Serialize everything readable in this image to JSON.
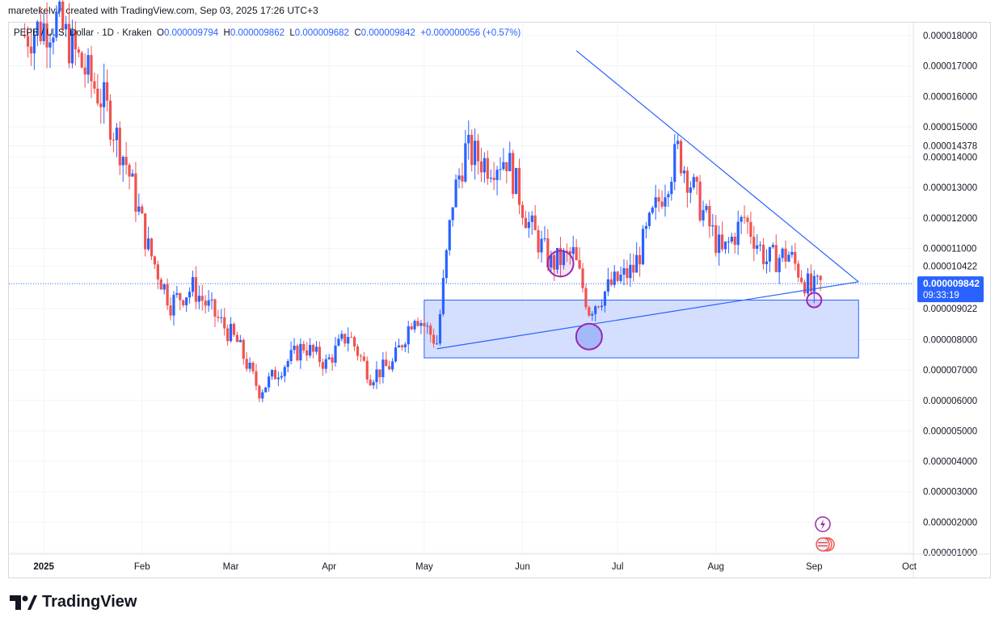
{
  "header": {
    "attribution": "maretekelvin created with TradingView.com, Sep 03, 2025 17:26 UTC+3"
  },
  "legend": {
    "symbol": "PEPE / U. S. Dollar · 1D · Kraken",
    "o_label": "O",
    "o": "0.000009794",
    "h_label": "H",
    "h": "0.000009862",
    "l_label": "L",
    "l": "0.000009682",
    "c_label": "C",
    "c": "0.000009842",
    "change": "+0.000000056 (+0.57%)"
  },
  "brand": {
    "name": "TradingView"
  },
  "colors": {
    "up": "#26a69a",
    "up_body": "#2962ff",
    "down": "#ef5350",
    "line": "#2962ff",
    "zone": "#c9d6ff",
    "circle": "#9c27b0",
    "price_label": "#2962ff"
  },
  "chart_data": {
    "type": "candlestick",
    "x_axis": [
      "2025",
      "Feb",
      "Mar",
      "Apr",
      "May",
      "Jun",
      "Jul",
      "Aug",
      "Sep",
      "Oct"
    ],
    "y_ticks": [
      "0.000018000",
      "0.000017000",
      "0.000016000",
      "0.000015000",
      "0.000014378",
      "0.000014000",
      "0.000013000",
      "0.000012000",
      "0.000011000",
      "0.000010422",
      "0.000009022",
      "0.000008000",
      "0.000007000",
      "0.000006000",
      "0.000005000",
      "0.000004000",
      "0.000003000",
      "0.000002000",
      "0.000001000"
    ],
    "ylim": [
      1e-06,
      1.85e-05
    ],
    "last_price": {
      "value": "0.000009842",
      "countdown": "09:33:19"
    },
    "series_close_points": [
      [
        "2024-12-26",
        1.8e-05
      ],
      [
        "2025-01-05",
        1.85e-05
      ],
      [
        "2025-01-12",
        1.72e-05
      ],
      [
        "2025-01-20",
        1.58e-05
      ],
      [
        "2025-01-27",
        1.38e-05
      ],
      [
        "2025-02-03",
        1.1e-05
      ],
      [
        "2025-02-10",
        9.2e-06
      ],
      [
        "2025-02-17",
        9.7e-06
      ],
      [
        "2025-02-24",
        8.8e-06
      ],
      [
        "2025-03-03",
        7.9e-06
      ],
      [
        "2025-03-10",
        6.3e-06
      ],
      [
        "2025-03-17",
        7.1e-06
      ],
      [
        "2025-03-24",
        7.8e-06
      ],
      [
        "2025-03-31",
        7.2e-06
      ],
      [
        "2025-04-07",
        8.2e-06
      ],
      [
        "2025-04-14",
        6.8e-06
      ],
      [
        "2025-04-21",
        7.2e-06
      ],
      [
        "2025-04-28",
        8.9e-06
      ],
      [
        "2025-05-05",
        7.9e-06
      ],
      [
        "2025-05-10",
        1.26e-05
      ],
      [
        "2025-05-14",
        1.42e-05
      ],
      [
        "2025-05-21",
        1.38e-05
      ],
      [
        "2025-05-27",
        1.4e-05
      ],
      [
        "2025-06-03",
        1.18e-05
      ],
      [
        "2025-06-10",
        1.05e-05
      ],
      [
        "2025-06-17",
        1.08e-05
      ],
      [
        "2025-06-22",
        9e-06
      ],
      [
        "2025-06-29",
        9.8e-06
      ],
      [
        "2025-07-06",
        1.03e-05
      ],
      [
        "2025-07-13",
        1.23e-05
      ],
      [
        "2025-07-20",
        1.42e-05
      ],
      [
        "2025-07-27",
        1.24e-05
      ],
      [
        "2025-08-03",
        1.08e-05
      ],
      [
        "2025-08-10",
        1.2e-05
      ],
      [
        "2025-08-17",
        1.06e-05
      ],
      [
        "2025-08-24",
        1.08e-05
      ],
      [
        "2025-08-31",
        9.6e-06
      ],
      [
        "2025-09-03",
        9.8e-06
      ]
    ],
    "drawings": {
      "descending_trendline": {
        "from": [
          "2025-06-18",
          1.75e-05
        ],
        "to": [
          "2025-09-15",
          9.9e-06
        ]
      },
      "ascending_trendline": {
        "from": [
          "2025-05-05",
          7.7e-06
        ],
        "to": [
          "2025-09-15",
          9.9e-06
        ]
      },
      "support_zone": {
        "from": "2025-05-01",
        "to": "2025-09-15",
        "top": 9.3e-06,
        "bottom": 7.4e-06
      },
      "circles": [
        {
          "date": "2025-06-13",
          "price": 1.05e-05
        },
        {
          "date": "2025-06-22",
          "price": 8.1e-06
        },
        {
          "date": "2025-09-01",
          "price": 9.3e-06
        }
      ]
    }
  }
}
